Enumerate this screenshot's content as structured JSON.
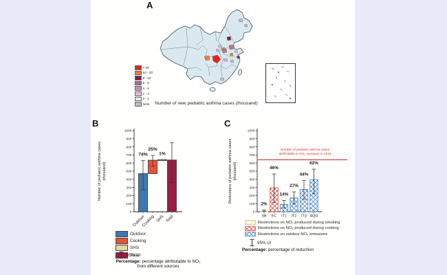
{
  "figure": {
    "background_color": "#e8eaf7",
    "panel_color": "#ffffff"
  },
  "panelA": {
    "label": "A",
    "caption": "Number of  new pediatric asthma cases (thousand)",
    "legend": {
      "items": [
        {
          "label": "> 20",
          "color": "#e8231f"
        },
        {
          "label": "10 - 20",
          "color": "#f08025"
        },
        {
          "label": "8 - 10",
          "color": "#7b1f4e"
        },
        {
          "label": "6 - 8",
          "color": "#a86f92"
        },
        {
          "label": "4 - 6",
          "color": "#c495ae"
        },
        {
          "label": "2 - 4",
          "color": "#ddc0d0"
        },
        {
          "label": "0 - 2",
          "color": "#f3e9ef"
        },
        {
          "label": "NAN",
          "color": "#ffffff",
          "hatch": true
        }
      ]
    }
  },
  "panelB": {
    "label": "B",
    "legend": {
      "items": [
        {
          "label": "Outdoor",
          "color": "#3f78b3"
        },
        {
          "label": "Cooking",
          "color": "#e6533a"
        },
        {
          "label": "SHS",
          "color": "#e7d79f"
        },
        {
          "label": "Total",
          "color": "#9b1c45"
        }
      ],
      "ui_label": "95% UI"
    },
    "note_bold": "Percentage:",
    "note_rest": " percentage attributable to NO₂",
    "note_line2": "from different sources"
  },
  "panelC": {
    "label": "C",
    "legend": {
      "items": [
        {
          "label": "Restrictions on NO₂ produced during smoking",
          "color": "#e8d89a"
        },
        {
          "label": "Restrictions on NO₂ produced during cooking",
          "color": "#d6402e"
        },
        {
          "label": "Restrictions on outdoor NO₂ emissions",
          "color": "#3a7fc1"
        }
      ],
      "ui_label": "95% UI"
    },
    "note_bold": "Percentage:",
    "note_rest": " percentage of reduction"
  },
  "chart_data": [
    {
      "id": "chartB",
      "type": "bar",
      "subtype": "waterfall",
      "ylabel": "Number of pediatric asthma cases (thousand)",
      "ylabel_lines": [
        "Number of pediatric asthma cases",
        "(thousand)"
      ],
      "ylim": [
        0,
        1000
      ],
      "ytick_step": 100,
      "grid": false,
      "categories": [
        "Outdoor",
        "Cooking",
        "SHS",
        "Total"
      ],
      "bars": [
        {
          "category": "Outdoor",
          "base": 0,
          "value": 470,
          "err95": [
            270,
            630
          ],
          "pct": "74%",
          "color": "#3f78b3",
          "pattern": "solid"
        },
        {
          "category": "Cooking",
          "base": 470,
          "value": 635,
          "err95": [
            560,
            695
          ],
          "pct": "25%",
          "color": "#e6533a",
          "pattern": "solid"
        },
        {
          "category": "SHS",
          "base": 633,
          "value": 641,
          "err95": null,
          "pct": "1%",
          "color": "#1a1a1a",
          "pattern": "solid"
        },
        {
          "category": "Total",
          "base": 0,
          "value": 638,
          "err95": [
            360,
            850
          ],
          "pct": null,
          "color": "#9b1c45",
          "pattern": "solid"
        }
      ]
    },
    {
      "id": "chartC",
      "type": "bar",
      "ylabel": "Reductions of pediatric asthma cases (thousand)",
      "ylabel_lines": [
        "Reductions of pediatric asthma cases",
        "(thousand)"
      ],
      "ylim": [
        0,
        1000
      ],
      "ytick_step": 100,
      "grid": false,
      "categories": [
        "SB",
        "EC",
        "IT1",
        "IT2",
        "IT3",
        "AQG"
      ],
      "bars": [
        {
          "category": "SB",
          "base": 0,
          "value": 10,
          "err95": [
            3,
            20
          ],
          "pct": "2%",
          "color": "#e8d89a",
          "pattern": "hatchYellow"
        },
        {
          "category": "EC",
          "base": 0,
          "value": 295,
          "err95": [
            115,
            465
          ],
          "pct": "46%",
          "color": "#d6402e",
          "pattern": "hatchRed"
        },
        {
          "category": "IT1",
          "base": 0,
          "value": 90,
          "err95": [
            45,
            140
          ],
          "pct": "14%",
          "color": "#3a7fc1",
          "pattern": "hatchBlue"
        },
        {
          "category": "IT2",
          "base": 0,
          "value": 170,
          "err95": [
            95,
            245
          ],
          "pct": "27%",
          "color": "#3a7fc1",
          "pattern": "hatchBlue"
        },
        {
          "category": "IT3",
          "base": 0,
          "value": 275,
          "err95": [
            155,
            385
          ],
          "pct": "44%",
          "color": "#3a7fc1",
          "pattern": "hatchBlue"
        },
        {
          "category": "AQG",
          "base": 0,
          "value": 395,
          "err95": [
            225,
            525
          ],
          "pct": "62%",
          "color": "#3a7fc1",
          "pattern": "hatchBlue"
        }
      ],
      "refline": {
        "value": 640,
        "color": "#d0342c",
        "annotation_lines": [
          "Number of pediatric asthma cases",
          "attributable to NO₂ exposure in 2019"
        ]
      }
    }
  ]
}
